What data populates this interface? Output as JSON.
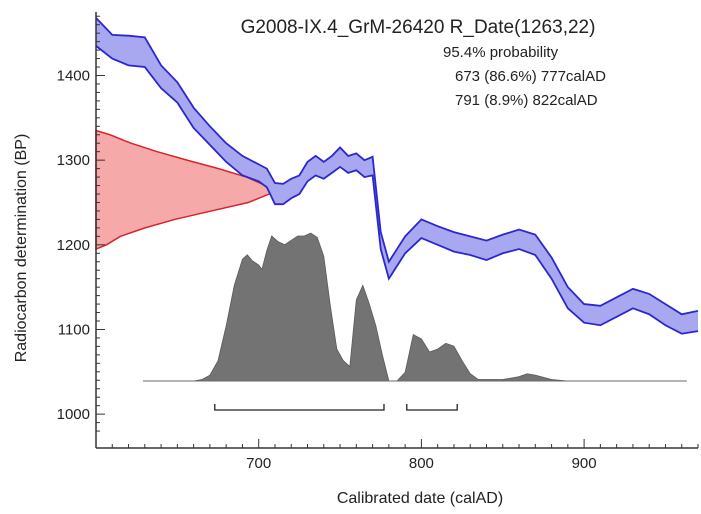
{
  "chart_data": {
    "type": "area",
    "title": "G2008-IX.4_GrM-26420 R_Date(1263,22)",
    "probability_header": "95.4% probability",
    "probability_ranges": [
      "673 (86.6%) 777calAD",
      "791 (8.9%) 822calAD"
    ],
    "ranges_numeric": [
      [
        673,
        777
      ],
      [
        791,
        822
      ]
    ],
    "xlabel": "Calibrated date (calAD)",
    "ylabel": "Radiocarbon determination (BP)",
    "xlim": [
      600,
      970
    ],
    "ylim": [
      960,
      1475
    ],
    "x_ticks": [
      700,
      800,
      900
    ],
    "y_ticks": [
      1000,
      1100,
      1200,
      1300,
      1400
    ],
    "radiocarbon_date": {
      "mean": 1263,
      "sd": 22
    },
    "calibration_curve": {
      "x": [
        600,
        610,
        620,
        630,
        640,
        650,
        660,
        670,
        680,
        690,
        700,
        705,
        710,
        715,
        720,
        725,
        730,
        735,
        740,
        745,
        750,
        755,
        760,
        765,
        770,
        775,
        780,
        785,
        790,
        800,
        810,
        820,
        830,
        840,
        850,
        860,
        870,
        880,
        890,
        900,
        910,
        920,
        930,
        940,
        950,
        960,
        970
      ],
      "upper": [
        1468,
        1448,
        1447,
        1445,
        1412,
        1392,
        1362,
        1340,
        1320,
        1305,
        1295,
        1290,
        1273,
        1272,
        1278,
        1282,
        1298,
        1305,
        1298,
        1305,
        1315,
        1305,
        1308,
        1300,
        1304,
        1215,
        1180,
        1195,
        1210,
        1230,
        1222,
        1215,
        1210,
        1205,
        1212,
        1218,
        1212,
        1185,
        1150,
        1130,
        1128,
        1138,
        1148,
        1142,
        1130,
        1118,
        1122
      ],
      "lower": [
        1435,
        1420,
        1412,
        1410,
        1385,
        1368,
        1338,
        1318,
        1298,
        1282,
        1275,
        1268,
        1248,
        1248,
        1255,
        1260,
        1275,
        1282,
        1278,
        1285,
        1292,
        1285,
        1288,
        1280,
        1282,
        1195,
        1160,
        1175,
        1190,
        1208,
        1200,
        1192,
        1188,
        1182,
        1190,
        1195,
        1188,
        1160,
        1125,
        1108,
        1105,
        1115,
        1125,
        1118,
        1105,
        1095,
        1098
      ]
    },
    "date_density": {
      "bp": [
        1195,
        1200,
        1210,
        1220,
        1230,
        1240,
        1250,
        1260,
        1263,
        1270,
        1280,
        1290,
        1300,
        1310,
        1320,
        1330,
        1335
      ],
      "relative": [
        0.0,
        0.06,
        0.14,
        0.28,
        0.45,
        0.66,
        0.87,
        0.99,
        1.0,
        0.97,
        0.86,
        0.7,
        0.52,
        0.35,
        0.2,
        0.08,
        0.0
      ]
    },
    "calibrated_distribution": {
      "x": [
        632,
        640,
        650,
        660,
        665,
        670,
        675,
        680,
        685,
        690,
        693,
        696,
        700,
        702,
        705,
        708,
        712,
        716,
        720,
        724,
        728,
        732,
        736,
        740,
        744,
        748,
        752,
        756,
        760,
        764,
        768,
        772,
        776,
        780,
        785,
        790,
        795,
        800,
        805,
        810,
        815,
        820,
        825,
        830,
        835,
        840,
        850,
        860,
        865,
        870,
        880,
        890,
        900,
        910,
        920,
        940,
        960
      ],
      "relative": [
        0,
        0,
        0,
        0,
        0.01,
        0.04,
        0.14,
        0.38,
        0.66,
        0.84,
        0.87,
        0.83,
        0.8,
        0.77,
        0.9,
        1.0,
        0.96,
        0.94,
        0.97,
        1.0,
        1.0,
        1.02,
        0.99,
        0.86,
        0.52,
        0.22,
        0.14,
        0.1,
        0.56,
        0.66,
        0.53,
        0.38,
        0.18,
        0.0,
        0.0,
        0.06,
        0.32,
        0.29,
        0.2,
        0.22,
        0.26,
        0.24,
        0.14,
        0.05,
        0.01,
        0.01,
        0.01,
        0.03,
        0.05,
        0.04,
        0.01,
        0,
        0,
        0,
        0,
        0,
        0
      ]
    },
    "colors": {
      "curve_fill": "#a7a8f0",
      "curve_stroke": "#2b27cf",
      "date_fill": "#f5a9a9",
      "date_stroke": "#d9242a",
      "distribution_fill": "#737373",
      "axis": "#333333"
    },
    "grid": false
  }
}
